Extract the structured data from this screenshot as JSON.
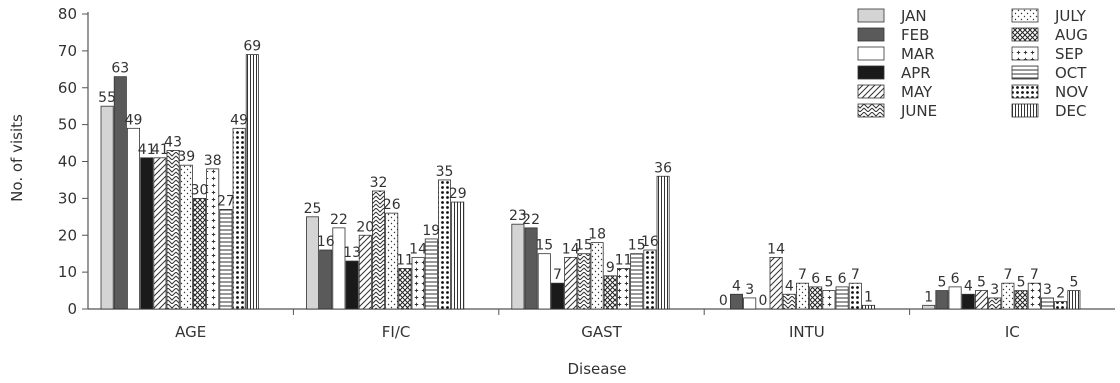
{
  "chart_data": {
    "type": "bar",
    "xlabel": "Disease",
    "ylabel": "No. of visits",
    "ylim": [
      0,
      80
    ],
    "yticks": [
      0,
      10,
      20,
      30,
      40,
      50,
      60,
      70,
      80
    ],
    "categories": [
      "AGE",
      "FI/C",
      "GAST",
      "INTU",
      "IC"
    ],
    "legend_position": "top-right",
    "series": [
      {
        "name": "JAN",
        "pattern": "light-gray",
        "values": [
          55,
          25,
          23,
          0,
          1
        ]
      },
      {
        "name": "FEB",
        "pattern": "dark-gray",
        "values": [
          63,
          16,
          22,
          4,
          5
        ]
      },
      {
        "name": "MAR",
        "pattern": "white",
        "values": [
          49,
          22,
          15,
          3,
          6
        ]
      },
      {
        "name": "APR",
        "pattern": "black",
        "values": [
          41,
          13,
          7,
          0,
          4
        ]
      },
      {
        "name": "MAY",
        "pattern": "forward-diagonal",
        "values": [
          41,
          20,
          14,
          14,
          5
        ]
      },
      {
        "name": "JUNE",
        "pattern": "chevron",
        "values": [
          43,
          32,
          15,
          4,
          3
        ]
      },
      {
        "name": "JULY",
        "pattern": "sparse-dots",
        "values": [
          39,
          26,
          18,
          7,
          7
        ]
      },
      {
        "name": "AUG",
        "pattern": "crosshatch",
        "values": [
          30,
          11,
          9,
          6,
          5
        ]
      },
      {
        "name": "SEP",
        "pattern": "plus",
        "values": [
          38,
          14,
          11,
          5,
          7
        ]
      },
      {
        "name": "OCT",
        "pattern": "horizontal-lines",
        "values": [
          27,
          19,
          15,
          6,
          3
        ]
      },
      {
        "name": "NOV",
        "pattern": "big-dots",
        "values": [
          49,
          35,
          16,
          7,
          2
        ]
      },
      {
        "name": "DEC",
        "pattern": "vertical-lines",
        "values": [
          69,
          29,
          36,
          1,
          5
        ]
      }
    ]
  }
}
